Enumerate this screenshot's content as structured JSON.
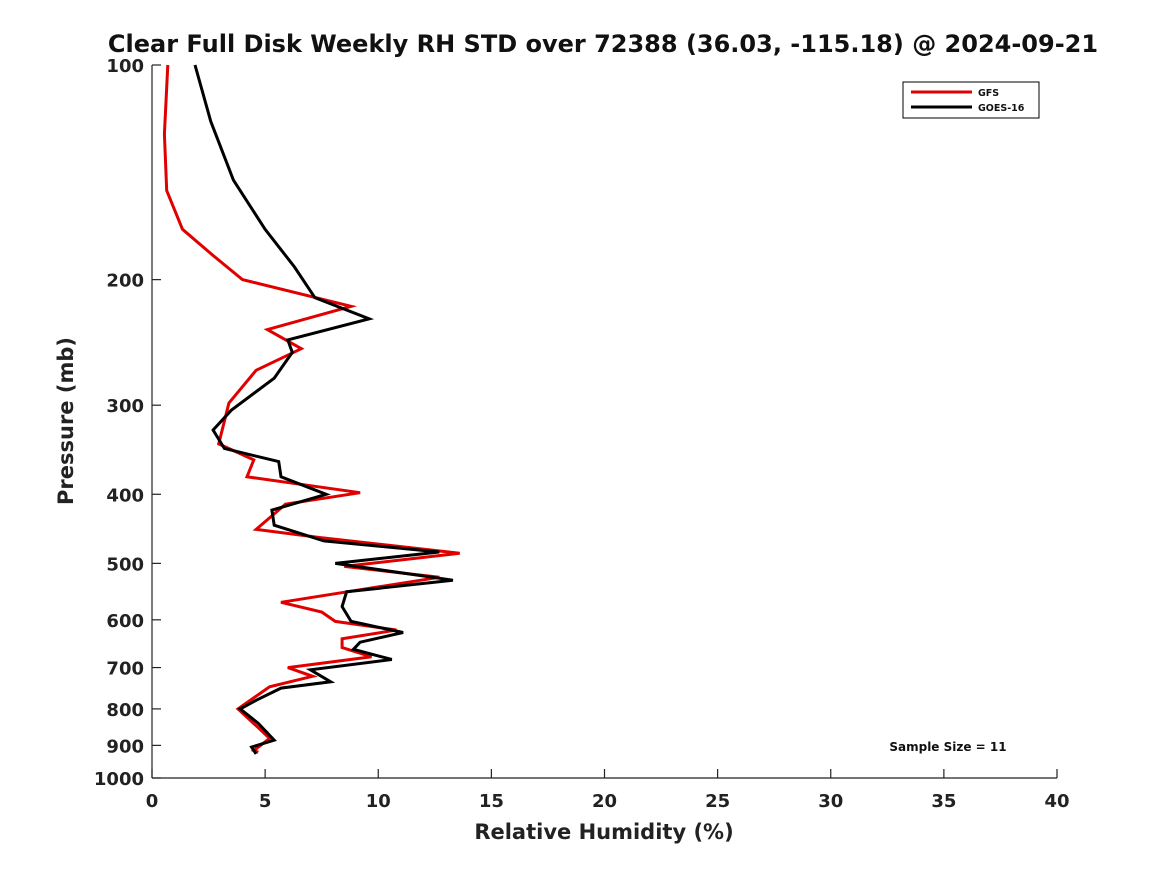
{
  "chart_data": {
    "type": "line",
    "title": "Clear Full Disk Weekly RH STD over 72388 (36.03, -115.18) @ 2024-09-21",
    "xlabel": "Relative Humidity (%)",
    "ylabel": "Pressure (mb)",
    "xlim": [
      0,
      40
    ],
    "ylim": [
      100,
      1000
    ],
    "y_scale": "log",
    "y_reversed": true,
    "xticks": [
      0,
      5,
      10,
      15,
      20,
      25,
      30,
      35,
      40
    ],
    "yticks": [
      100,
      200,
      300,
      400,
      500,
      600,
      700,
      800,
      900,
      1000
    ],
    "grid": false,
    "legend_position": "top-right",
    "annotation": "Sample Size = 11",
    "series": [
      {
        "name": "GFS",
        "color": "#e00000",
        "points": [
          [
            0.7,
            100
          ],
          [
            0.55,
            125
          ],
          [
            0.65,
            150
          ],
          [
            1.35,
            170
          ],
          [
            2.7,
            185
          ],
          [
            4.0,
            200
          ],
          [
            8.8,
            218
          ],
          [
            5.1,
            235
          ],
          [
            6.6,
            250
          ],
          [
            4.6,
            268
          ],
          [
            3.4,
            298
          ],
          [
            2.95,
            340
          ],
          [
            4.5,
            358
          ],
          [
            4.2,
            378
          ],
          [
            9.2,
            398
          ],
          [
            5.9,
            413
          ],
          [
            4.6,
            448
          ],
          [
            7.4,
            460
          ],
          [
            13.6,
            484
          ],
          [
            8.5,
            505
          ],
          [
            12.7,
            523
          ],
          [
            8.8,
            547
          ],
          [
            5.7,
            567
          ],
          [
            7.5,
            585
          ],
          [
            8.1,
            603
          ],
          [
            10.8,
            620
          ],
          [
            8.4,
            638
          ],
          [
            8.4,
            656
          ],
          [
            9.7,
            676
          ],
          [
            6.0,
            700
          ],
          [
            7.1,
            720
          ],
          [
            5.2,
            745
          ],
          [
            3.8,
            800
          ],
          [
            4.7,
            850
          ],
          [
            5.2,
            880
          ],
          [
            4.5,
            915
          ],
          [
            4.7,
            920
          ]
        ]
      },
      {
        "name": "GOES-16",
        "color": "#000000",
        "points": [
          [
            1.9,
            100
          ],
          [
            2.6,
            120
          ],
          [
            3.6,
            145
          ],
          [
            5.0,
            170
          ],
          [
            6.3,
            192
          ],
          [
            7.2,
            212
          ],
          [
            9.6,
            227
          ],
          [
            6.0,
            243
          ],
          [
            6.2,
            253
          ],
          [
            5.4,
            275
          ],
          [
            3.5,
            305
          ],
          [
            2.7,
            325
          ],
          [
            3.2,
            345
          ],
          [
            5.6,
            360
          ],
          [
            5.7,
            378
          ],
          [
            7.7,
            400
          ],
          [
            5.3,
            421
          ],
          [
            5.4,
            442
          ],
          [
            7.6,
            465
          ],
          [
            12.7,
            482
          ],
          [
            8.1,
            500
          ],
          [
            13.3,
            528
          ],
          [
            8.6,
            548
          ],
          [
            8.4,
            575
          ],
          [
            8.8,
            603
          ],
          [
            11.1,
            625
          ],
          [
            9.2,
            645
          ],
          [
            8.9,
            660
          ],
          [
            10.6,
            682
          ],
          [
            7.0,
            705
          ],
          [
            7.9,
            733
          ],
          [
            5.7,
            748
          ],
          [
            4.6,
            778
          ],
          [
            3.9,
            800
          ],
          [
            4.7,
            838
          ],
          [
            5.4,
            885
          ],
          [
            4.4,
            905
          ],
          [
            4.6,
            925
          ]
        ]
      }
    ]
  }
}
